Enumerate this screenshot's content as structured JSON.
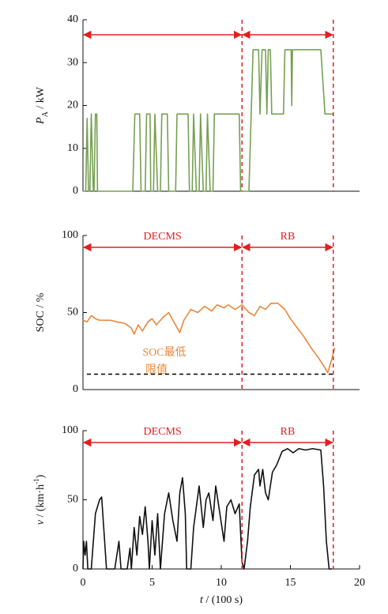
{
  "chart_data": [
    {
      "type": "line",
      "ylabel_parts": [
        {
          "text": "P",
          "italic": true
        },
        {
          "text": "A",
          "sub": true
        },
        {
          "text": " / kW"
        }
      ],
      "xlim": [
        0,
        20
      ],
      "ylim": [
        0,
        40
      ],
      "yticks": [
        0,
        10,
        20,
        30,
        40
      ],
      "x": [
        0,
        0.2,
        0.3,
        0.4,
        0.5,
        0.6,
        0.75,
        0.8,
        0.9,
        1.0,
        1.05,
        3.6,
        3.75,
        4.1,
        4.2,
        4.5,
        4.6,
        4.85,
        4.9,
        5.1,
        5.2,
        5.4,
        5.6,
        5.7,
        6.1,
        6.2,
        6.7,
        6.8,
        7.6,
        7.7,
        7.9,
        8.0,
        8.2,
        8.4,
        8.5,
        8.7,
        8.9,
        9.0,
        9.2,
        9.4,
        9.5,
        11.3,
        11.4,
        12.0,
        12.3,
        12.7,
        12.8,
        12.95,
        13.2,
        13.3,
        13.4,
        13.55,
        13.65,
        14.5,
        14.6,
        15.05,
        15.1,
        15.15,
        17.2,
        17.5,
        18.1
      ],
      "series": [
        {
          "color": "#76a052",
          "values": [
            0,
            0,
            17,
            0,
            0,
            18,
            0,
            0,
            18,
            18,
            0,
            0,
            18,
            18,
            0,
            0,
            18,
            18,
            0,
            0,
            18,
            0,
            0,
            18,
            18,
            0,
            0,
            18,
            18,
            0,
            0,
            18,
            0,
            0,
            18,
            0,
            0,
            18,
            0,
            0,
            18,
            18,
            0,
            0,
            33,
            33,
            18,
            33,
            33,
            18,
            33,
            33,
            18,
            18,
            33,
            33,
            20,
            33,
            33,
            18,
            18
          ]
        }
      ],
      "vlines": [
        11.5,
        18.1
      ],
      "vline_color": "#e02020",
      "regions": [
        {
          "from": 0,
          "to": 11.5
        },
        {
          "from": 11.5,
          "to": 18.1
        }
      ]
    },
    {
      "type": "line",
      "ylabel_parts": [
        {
          "text": "SOC / %"
        }
      ],
      "xlim": [
        0,
        20
      ],
      "ylim": [
        0,
        100
      ],
      "yticks": [
        0,
        50,
        100
      ],
      "x": [
        0,
        0.3,
        0.6,
        0.9,
        1.2,
        2,
        2.4,
        3,
        3.5,
        3.7,
        4.0,
        4.3,
        4.7,
        5.0,
        5.3,
        5.8,
        6.2,
        6.5,
        7.0,
        7.3,
        7.8,
        8.3,
        8.8,
        9.3,
        9.7,
        10.2,
        10.5,
        11.0,
        11.5,
        12.0,
        12.4,
        12.8,
        13.2,
        13.6,
        14.1,
        14.6,
        15.0,
        15.5,
        16.0,
        16.5,
        17.0,
        17.5,
        17.7,
        18.0,
        18.2
      ],
      "series": [
        {
          "color": "#e8883a",
          "values": [
            45,
            44,
            48,
            46,
            45,
            45,
            44,
            43,
            40,
            36,
            42,
            38,
            44,
            46,
            42,
            47,
            50,
            45,
            37,
            45,
            52,
            50,
            54,
            51,
            55,
            53,
            55,
            52,
            55,
            50,
            48,
            54,
            52,
            56,
            56,
            52,
            46,
            40,
            34,
            27,
            21,
            14,
            11,
            20,
            27
          ]
        }
      ],
      "hlines": [
        {
          "value": 10,
          "color": "#000000"
        }
      ],
      "annotation": {
        "lines": [
          "SOC最低",
          "限值"
        ],
        "color": "#e8883a"
      },
      "vlines": [
        11.5,
        18.1
      ],
      "vline_color": "#e02020",
      "regions": [
        {
          "label": "DECMS",
          "from": 0,
          "to": 11.5
        },
        {
          "label": "RB",
          "from": 11.5,
          "to": 18.1
        }
      ]
    },
    {
      "type": "line",
      "ylabel_parts": [
        {
          "text": "v",
          "italic": true
        },
        {
          "text": " / (km·h"
        },
        {
          "text": "-1",
          "sup": true
        },
        {
          "text": ")"
        }
      ],
      "xlabel_parts": [
        {
          "text": "t",
          "italic": true
        },
        {
          "text": " / (100 s)"
        }
      ],
      "xlim": [
        0,
        20
      ],
      "xticks": [
        0,
        5,
        10,
        15,
        20
      ],
      "ylim": [
        0,
        100
      ],
      "yticks": [
        0,
        50,
        100
      ],
      "x": [
        0,
        0.05,
        0.15,
        0.25,
        0.35,
        0.6,
        0.9,
        1.2,
        1.35,
        1.5,
        1.7,
        2.3,
        2.6,
        2.75,
        3.2,
        3.4,
        3.5,
        3.7,
        3.9,
        4.1,
        4.3,
        4.5,
        4.7,
        4.8,
        5.0,
        5.2,
        5.4,
        5.6,
        5.9,
        6.2,
        6.5,
        6.8,
        7.0,
        7.2,
        7.4,
        7.5,
        7.8,
        8.0,
        8.4,
        8.7,
        8.9,
        9.1,
        9.4,
        9.6,
        9.9,
        10.2,
        10.4,
        10.7,
        11.0,
        11.3,
        11.5,
        11.65,
        11.9,
        12.1,
        12.4,
        12.7,
        12.8,
        13.0,
        13.2,
        13.4,
        13.7,
        14.0,
        14.4,
        14.8,
        15.2,
        15.6,
        16.1,
        16.6,
        17.2,
        17.4,
        17.6,
        17.8,
        18.0
      ],
      "series": [
        {
          "color": "#111111",
          "values": [
            0,
            20,
            10,
            20,
            0,
            0,
            40,
            50,
            52,
            30,
            0,
            0,
            20,
            0,
            0,
            15,
            0,
            30,
            10,
            38,
            25,
            45,
            20,
            0,
            35,
            10,
            40,
            0,
            40,
            55,
            35,
            20,
            55,
            66,
            40,
            0,
            0,
            30,
            60,
            30,
            50,
            55,
            35,
            60,
            40,
            20,
            45,
            50,
            40,
            47,
            5,
            0,
            20,
            45,
            68,
            72,
            60,
            72,
            55,
            50,
            70,
            75,
            85,
            87,
            84,
            87,
            86,
            87,
            86,
            60,
            20,
            0,
            0
          ]
        }
      ],
      "vlines": [
        11.5,
        18.1
      ],
      "vline_color": "#e02020",
      "regions": [
        {
          "label": "DECMS",
          "from": 0,
          "to": 11.5
        },
        {
          "label": "RB",
          "from": 11.5,
          "to": 18.1
        }
      ]
    }
  ]
}
